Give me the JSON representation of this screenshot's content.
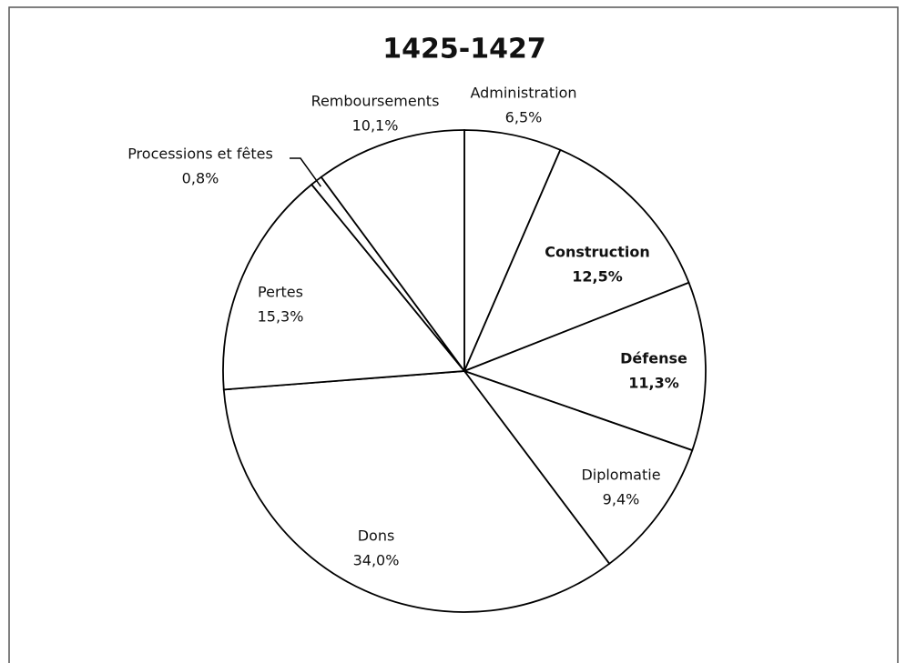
{
  "chart_data": {
    "type": "pie",
    "title": "1425-1427",
    "categories": [
      "Administration",
      "Construction",
      "Défense",
      "Diplomatie",
      "Dons",
      "Pertes",
      "Processions et fêtes",
      "Remboursements"
    ],
    "values": [
      6.5,
      12.5,
      11.3,
      9.4,
      34.0,
      15.3,
      0.8,
      10.1
    ],
    "value_labels": [
      "6,5%",
      "12,5%",
      "11,3%",
      "9,4%",
      "34,0%",
      "15,3%",
      "0,8%",
      "10,1%"
    ],
    "bold": [
      false,
      true,
      true,
      false,
      false,
      false,
      false,
      false
    ],
    "color": "#ffffff",
    "edge_color": "#000000"
  }
}
